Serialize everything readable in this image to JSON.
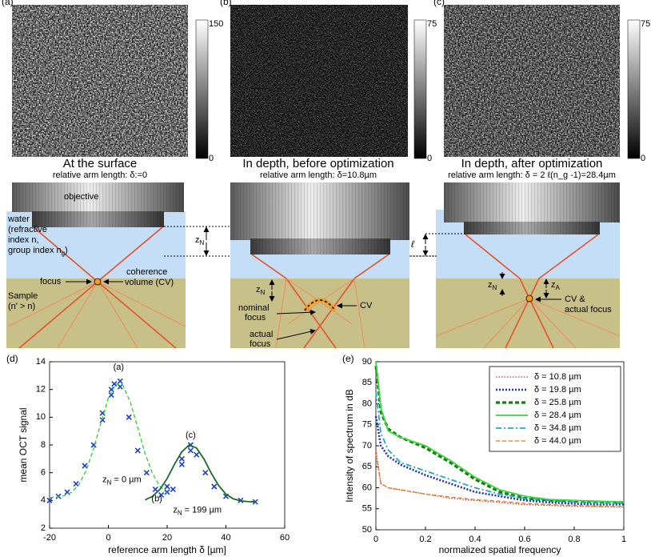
{
  "panels": [
    {
      "label": "(a)",
      "colorbar": {
        "max": 150,
        "min": 0
      },
      "caption": "At the surface",
      "subcaption": "relative arm length: δ:=0"
    },
    {
      "label": "(b)",
      "colorbar": {
        "max": 75,
        "min": 0
      },
      "caption": "In depth, before optimization",
      "subcaption": "relative arm length: δ=10.8µm"
    },
    {
      "label": "(c)",
      "colorbar": {
        "max": 75,
        "min": 0
      },
      "caption": "In depth, after optimization",
      "subcaption": "relative arm length: δ = 2 ℓ(n_g -1)=28.4µm"
    }
  ],
  "diagram": {
    "a": {
      "objective": "objective",
      "water": [
        "water",
        "(refractive",
        "index n,",
        "group index n"
      ],
      "water_sub": "g",
      "water_end": ")",
      "z": "z",
      "z_sub": "N",
      "focus": "focus",
      "cv": [
        "coherence",
        "volume (CV)"
      ],
      "sample": [
        "Sample",
        "(n' > n)"
      ]
    },
    "b": {
      "z": "z",
      "z_sub": "N",
      "nominal": [
        "nominal",
        "focus"
      ],
      "actual": [
        "actual",
        "focus"
      ],
      "cv": "CV"
    },
    "c": {
      "ell": "ℓ",
      "z": "z",
      "z_sub": "N",
      "za": "z",
      "za_sub": "A",
      "cv": [
        "CV &",
        "actual focus"
      ]
    }
  },
  "chart_data": [
    {
      "type": "scatter",
      "label": "(d)",
      "xlabel": "reference arm length δ [µm]",
      "ylabel": "mean OCT signal",
      "xlim": [
        -20,
        60
      ],
      "xticks": [
        -20,
        0,
        20,
        40,
        60
      ],
      "ylim": [
        2,
        14
      ],
      "yticks": [
        2,
        4,
        6,
        8,
        10,
        12,
        14
      ],
      "annotations": [
        "(a)",
        "(c)",
        "(b)",
        {
          "main": "z",
          "sub": "N",
          "rest": " = 0 µm"
        },
        {
          "main": "z",
          "sub": "N",
          "rest": " = 199 µm"
        }
      ],
      "series": [
        {
          "color": "#1f3fd0",
          "marker": "x",
          "x": [
            -20,
            -17,
            -14,
            -11,
            -8,
            -5,
            -2,
            -2,
            1,
            1,
            2,
            4,
            4,
            7,
            10,
            13,
            16,
            18,
            20,
            20,
            22,
            25,
            25,
            28,
            28,
            30,
            33,
            36,
            40,
            45,
            50
          ],
          "values": [
            4.0,
            4.3,
            4.6,
            5.2,
            6.5,
            8.0,
            9.8,
            10.3,
            12.0,
            11.6,
            12.4,
            12.6,
            12.2,
            10.0,
            7.6,
            6.0,
            4.8,
            4.4,
            4.6,
            5.0,
            4.8,
            7.0,
            6.6,
            8.0,
            7.6,
            7.3,
            6.0,
            5.0,
            4.3,
            4.0,
            3.9
          ]
        },
        {
          "color": "#33cc33",
          "dash": "dashed",
          "x": [
            -20,
            -17.5,
            -15,
            -12.5,
            -10,
            -7.5,
            -5,
            -2.5,
            0,
            2.5,
            5,
            7.5,
            10,
            12.5,
            15,
            17.5,
            20
          ],
          "values": [
            4.21,
            4.24,
            4.34,
            4.6,
            5.15,
            6.18,
            7.73,
            9.62,
            11.38,
            12.4,
            12.28,
            11.07,
            9.24,
            7.38,
            5.94,
            5.02,
            4.53
          ]
        },
        {
          "color": "#1a6b2a",
          "dash": "solid",
          "x": [
            12.5,
            15,
            17.5,
            20,
            22.5,
            25,
            27.5,
            30,
            32.5,
            35,
            37.5,
            40,
            42.5,
            45,
            47.5,
            50
          ],
          "values": [
            4.04,
            4.29,
            4.79,
            5.58,
            6.61,
            7.51,
            8.0,
            7.78,
            7.0,
            5.97,
            5.08,
            4.45,
            4.12,
            3.97,
            3.92,
            3.9
          ]
        }
      ]
    },
    {
      "type": "line",
      "label": "(e)",
      "xlabel": "normalized spatial frequency",
      "ylabel": "Intensity of spectrum in dB",
      "xlim": [
        0,
        1
      ],
      "xticks": [
        0,
        0.2,
        0.4,
        0.6,
        0.8,
        1
      ],
      "ylim": [
        50,
        90
      ],
      "yticks": [
        50,
        55,
        60,
        65,
        70,
        75,
        80,
        85,
        90
      ],
      "legend": "upper right",
      "x": [
        0,
        0.02,
        0.05,
        0.1,
        0.2,
        0.3,
        0.4,
        0.5,
        0.6,
        0.7,
        0.8,
        0.9,
        1
      ],
      "series": [
        {
          "name": "δ = 10.8 µm",
          "color": "#e03020",
          "dash": "dotted",
          "values": [
            69,
            61,
            60,
            59.5,
            58.5,
            57.5,
            57,
            56.5,
            56,
            55.8,
            55.6,
            55.5,
            55.4
          ]
        },
        {
          "name": "δ = 19.8 µm",
          "color": "#2030c0",
          "dash": "dotted-thick",
          "values": [
            77,
            70,
            67.5,
            65.5,
            63,
            61,
            59,
            58,
            57,
            56.5,
            56.2,
            56,
            56
          ]
        },
        {
          "name": "δ = 25.8 µm",
          "color": "#1a7a1a",
          "dash": "dashed-thick",
          "values": [
            89,
            78,
            74,
            72,
            69.5,
            66,
            62,
            59,
            57.5,
            57,
            56.8,
            56.6,
            56.5
          ]
        },
        {
          "name": "δ = 28.4 µm",
          "color": "#33dd33",
          "dash": "solid",
          "values": [
            90,
            79,
            73.5,
            72,
            70,
            66.5,
            62.5,
            59.5,
            58,
            57.2,
            57,
            56.8,
            56.6
          ]
        },
        {
          "name": "δ = 34.8 µm",
          "color": "#20a8c0",
          "dash": "dashdot",
          "values": [
            83,
            73,
            69,
            66,
            64,
            62,
            60,
            58.5,
            57.5,
            57,
            56.6,
            56.4,
            56.3
          ]
        },
        {
          "name": "δ = 44.0 µm",
          "color": "#e07818",
          "dash": "dashed",
          "values": [
            68,
            61,
            60,
            59.5,
            58.5,
            57.8,
            57.2,
            56.8,
            56.3,
            56,
            55.8,
            55.6,
            55.5
          ]
        }
      ]
    }
  ]
}
